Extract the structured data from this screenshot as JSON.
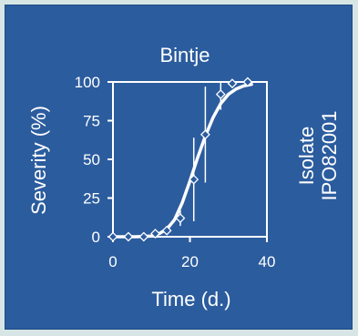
{
  "colors": {
    "background": "#2b5c9e",
    "outer": "#d7e6e4",
    "foreground": "#ffffff"
  },
  "chart_data": {
    "type": "scatter",
    "title": "Bintje",
    "side_label_line1": "Isolate",
    "side_label_line2": "IPO82001",
    "xlabel": "Time (d.)",
    "ylabel": "Severity (%)",
    "xlim": [
      0,
      40
    ],
    "ylim": [
      0,
      100
    ],
    "xticks": [
      "0",
      "20",
      "40"
    ],
    "yticks": [
      "0",
      "25",
      "50",
      "75",
      "100"
    ],
    "grid": false,
    "points": [
      {
        "x": 0,
        "y": 0,
        "err": 0
      },
      {
        "x": 4,
        "y": 0,
        "err": 0
      },
      {
        "x": 8,
        "y": 0,
        "err": 0
      },
      {
        "x": 11,
        "y": 2,
        "err": 0
      },
      {
        "x": 14,
        "y": 4,
        "err": 0
      },
      {
        "x": 17.5,
        "y": 12,
        "err": 5
      },
      {
        "x": 21,
        "y": 37,
        "err": 27
      },
      {
        "x": 24,
        "y": 66,
        "err": 31
      },
      {
        "x": 28,
        "y": 92,
        "err": 10
      },
      {
        "x": 31,
        "y": 99,
        "err": 0
      },
      {
        "x": 35,
        "y": 100,
        "err": 0
      }
    ],
    "fitted_curve": {
      "x": [
        0,
        6,
        10,
        12,
        14,
        16,
        18,
        20,
        22,
        24,
        26,
        28,
        30,
        32,
        34,
        36
      ],
      "y": [
        0,
        0,
        0.5,
        2,
        5,
        11,
        22,
        36,
        51,
        65,
        77,
        86,
        92,
        95.5,
        97.5,
        98.5
      ]
    }
  }
}
